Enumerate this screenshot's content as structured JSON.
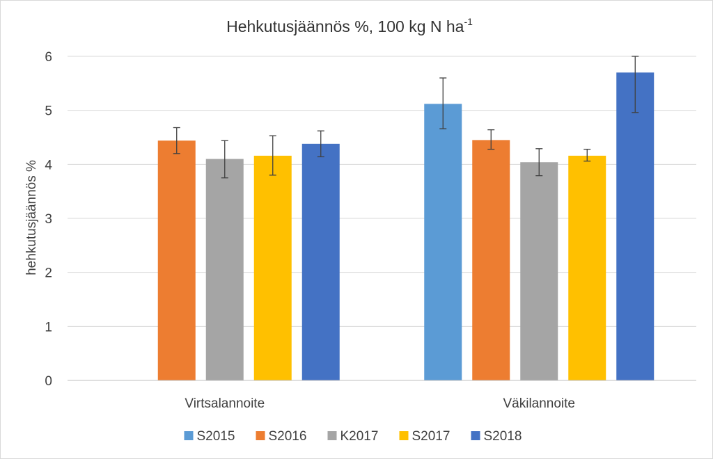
{
  "chart_data": {
    "type": "bar",
    "title": "Hehkutusjäännös %, 100 kg N ha",
    "title_superscript": "-1",
    "ylabel": "hehkutusjäännös %",
    "xlabel": "",
    "ylim": [
      0,
      6
    ],
    "yticks": [
      0,
      1,
      2,
      3,
      4,
      5,
      6
    ],
    "grid": true,
    "legend_position": "bottom",
    "categories": [
      "Virtsalannoite",
      "Väkilannoite"
    ],
    "series": [
      {
        "name": "S2015",
        "color": "#5b9bd5",
        "values": [
          null,
          5.12
        ],
        "error_low": [
          null,
          4.66
        ],
        "error_high": [
          null,
          5.6
        ]
      },
      {
        "name": "S2016",
        "color": "#ed7d31",
        "values": [
          4.44,
          4.45
        ],
        "error_low": [
          4.2,
          4.28
        ],
        "error_high": [
          4.68,
          4.64
        ]
      },
      {
        "name": "K2017",
        "color": "#a5a5a5",
        "values": [
          4.1,
          4.04
        ],
        "error_low": [
          3.75,
          3.79
        ],
        "error_high": [
          4.44,
          4.29
        ]
      },
      {
        "name": "S2017",
        "color": "#ffc000",
        "values": [
          4.16,
          4.16
        ],
        "error_low": [
          3.8,
          4.06
        ],
        "error_high": [
          4.53,
          4.28
        ]
      },
      {
        "name": "S2018",
        "color": "#4472c4",
        "values": [
          4.38,
          5.7
        ],
        "error_low": [
          4.14,
          4.96
        ],
        "error_high": [
          4.62,
          6.0
        ]
      }
    ]
  }
}
